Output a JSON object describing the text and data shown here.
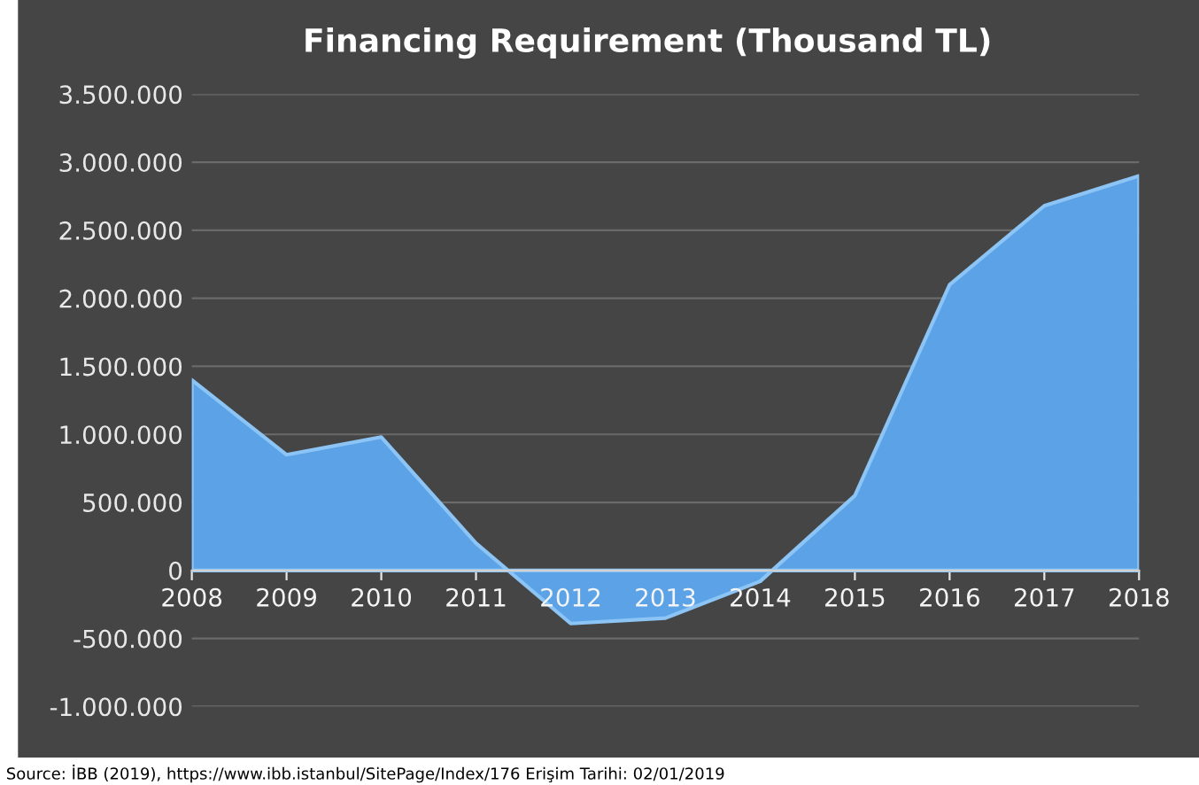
{
  "chart_data": {
    "type": "area",
    "title": "Financing Requirement (Thousand TL)",
    "categories": [
      "2008",
      "2009",
      "2010",
      "2011",
      "2012",
      "2013",
      "2014",
      "2015",
      "2016",
      "2017",
      "2018"
    ],
    "series": [
      {
        "color": "#5ba3e6",
        "values": [
          1400000,
          850000,
          980000,
          200000,
          -390000,
          -350000,
          -80000,
          550000,
          2100000,
          2680000,
          2900000
        ]
      }
    ],
    "ylim": [
      -1000000,
      3500000
    ],
    "yticks": [
      {
        "value": -1000000,
        "label": "-1.000.000"
      },
      {
        "value": -500000,
        "label": "-500.000"
      },
      {
        "value": 0,
        "label": "0"
      },
      {
        "value": 500000,
        "label": "500.000"
      },
      {
        "value": 1000000,
        "label": "1.000.000"
      },
      {
        "value": 1500000,
        "label": "1.500.000"
      },
      {
        "value": 2000000,
        "label": "2.000.000"
      },
      {
        "value": 2500000,
        "label": "2.500.000"
      },
      {
        "value": 3000000,
        "label": "3.000.000"
      },
      {
        "value": 3500000,
        "label": "3.500.000"
      }
    ],
    "grid": "y",
    "annotations": [
      "Source: İBB (2019), https://www.ibb.istanbul/SitePage/Index/176 Erişim Tarihi: 02/01/2019"
    ]
  }
}
